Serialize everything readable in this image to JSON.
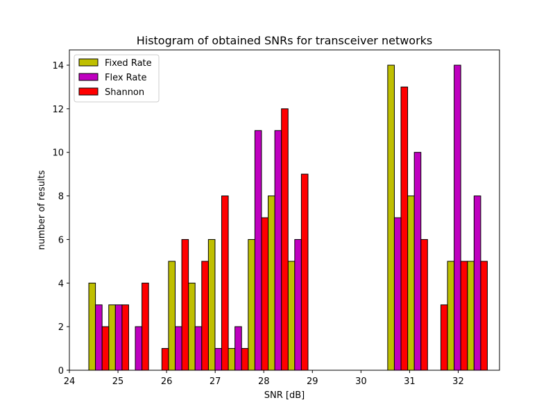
{
  "chart_data": {
    "type": "bar",
    "title": "Histogram of obtained SNRs for transceiver networks",
    "xlabel": "SNR [dB]",
    "ylabel": "number of results",
    "xlim": [
      24.0,
      32.85
    ],
    "ylim": [
      0,
      14.7
    ],
    "xticks": [
      "24",
      "25",
      "26",
      "27",
      "28",
      "29",
      "30",
      "31",
      "32"
    ],
    "yticks": [
      "0",
      "2",
      "4",
      "6",
      "8",
      "10",
      "12",
      "14"
    ],
    "legend_position": "top-left",
    "bin_starts": [
      24.4,
      24.81,
      25.22,
      25.63,
      26.04,
      26.45,
      26.86,
      27.27,
      27.68,
      28.09,
      28.5,
      28.91,
      29.32,
      29.73,
      30.14,
      30.55,
      30.96,
      31.37,
      31.78,
      32.19
    ],
    "bin_width": 0.41,
    "series": [
      {
        "name": "Fixed Rate",
        "color": "#bfbf00",
        "values": [
          4,
          3,
          0,
          0,
          5,
          4,
          6,
          1,
          6,
          8,
          5,
          0,
          0,
          0,
          0,
          14,
          8,
          0,
          5,
          5
        ]
      },
      {
        "name": "Flex Rate",
        "color": "#bf00bf",
        "values": [
          3,
          3,
          2,
          0,
          2,
          2,
          1,
          2,
          11,
          11,
          6,
          0,
          0,
          0,
          0,
          7,
          10,
          0,
          14,
          8
        ]
      },
      {
        "name": "Shannon",
        "color": "#ff0000",
        "values": [
          2,
          3,
          4,
          1,
          6,
          5,
          8,
          1,
          7,
          12,
          9,
          0,
          0,
          0,
          0,
          13,
          6,
          3,
          5,
          5
        ]
      }
    ]
  }
}
